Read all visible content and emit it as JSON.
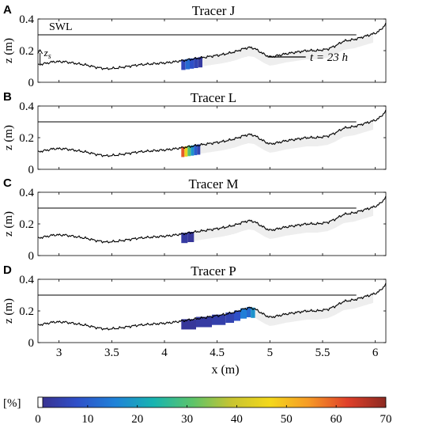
{
  "figure": {
    "xlabel": "x (m)",
    "ylabel": "z (m)",
    "swl_label": "SWL",
    "zs_label": "z",
    "zs_sub": "s",
    "time_label": "t = 23 h",
    "colorbar_unit_label": "[%]"
  },
  "colors": {
    "bed": "#000000",
    "swl": "#000000",
    "envelope": "#eeeeee",
    "colormap": [
      "#3a2f8a",
      "#2f4fc8",
      "#1f82d8",
      "#18b4b0",
      "#5cc46a",
      "#c7c431",
      "#f4d81b",
      "#f69a26",
      "#e0402a",
      "#8c2a22"
    ]
  },
  "chart_data": {
    "type": "area",
    "xlim": [
      2.8,
      6.1
    ],
    "ylim": [
      0,
      0.4
    ],
    "xticks": [
      "3",
      "3.5",
      "4",
      "4.5",
      "5",
      "5.5",
      "6"
    ],
    "yticks": [
      "0",
      "0.2",
      "0.4"
    ],
    "swl_z": 0.3,
    "bed_profile": {
      "x": [
        2.8,
        2.95,
        3.05,
        3.15,
        3.25,
        3.35,
        3.45,
        3.55,
        3.65,
        3.75,
        3.85,
        3.95,
        4.05,
        4.15,
        4.25,
        4.35,
        4.45,
        4.55,
        4.62,
        4.68,
        4.74,
        4.8,
        4.85,
        4.9,
        4.95,
        5.0,
        5.05,
        5.15,
        5.25,
        5.35,
        5.45,
        5.55,
        5.62,
        5.7,
        5.8,
        5.9,
        6.0,
        6.05,
        6.1
      ],
      "z": [
        0.11,
        0.13,
        0.13,
        0.12,
        0.11,
        0.095,
        0.085,
        0.09,
        0.1,
        0.11,
        0.115,
        0.12,
        0.125,
        0.135,
        0.145,
        0.155,
        0.165,
        0.175,
        0.185,
        0.195,
        0.21,
        0.22,
        0.215,
        0.195,
        0.175,
        0.16,
        0.165,
        0.18,
        0.19,
        0.2,
        0.2,
        0.21,
        0.23,
        0.26,
        0.27,
        0.29,
        0.31,
        0.33,
        0.37
      ]
    },
    "colorbar": {
      "min": 0,
      "max": 70,
      "ticks": [
        "0",
        "10",
        "20",
        "30",
        "40",
        "50",
        "60",
        "70"
      ]
    },
    "panels": [
      {
        "letter": "A",
        "title": "Tracer J",
        "show_swl_label": true,
        "show_zs": true,
        "show_time": true,
        "tracer": {
          "x": [
            4.16,
            4.2,
            4.24,
            4.28,
            4.32
          ],
          "pct": [
            6,
            12,
            8,
            5,
            3
          ]
        }
      },
      {
        "letter": "B",
        "title": "Tracer L",
        "show_swl_label": false,
        "show_zs": false,
        "show_time": false,
        "tracer": {
          "x": [
            4.16,
            4.19,
            4.22,
            4.25,
            4.28,
            4.31
          ],
          "pct": [
            60,
            45,
            30,
            18,
            10,
            5
          ]
        }
      },
      {
        "letter": "C",
        "title": "Tracer M",
        "show_swl_label": false,
        "show_zs": false,
        "show_time": false,
        "tracer": {
          "x": [
            4.16,
            4.22
          ],
          "pct": [
            3,
            2
          ]
        }
      },
      {
        "letter": "D",
        "title": "Tracer P",
        "show_swl_label": false,
        "show_zs": false,
        "show_time": false,
        "tracer": {
          "x": [
            4.16,
            4.3,
            4.45,
            4.58,
            4.66,
            4.72,
            4.78,
            4.82
          ],
          "pct": [
            2,
            3,
            4,
            5,
            8,
            15,
            12,
            18
          ]
        }
      }
    ]
  }
}
